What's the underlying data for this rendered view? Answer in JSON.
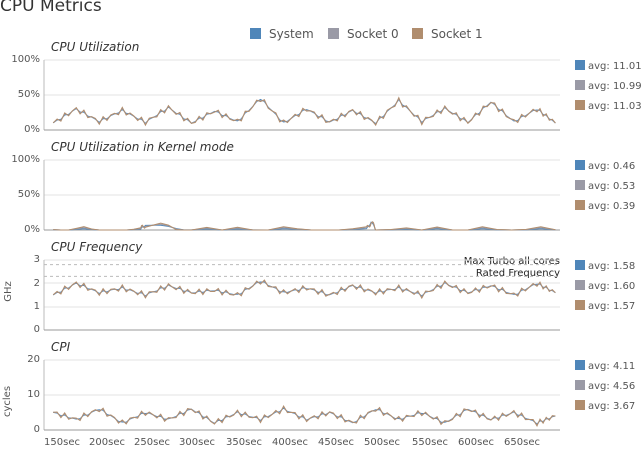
{
  "title": "CPU Metrics",
  "legend": [
    {
      "label": "System",
      "color": "#4f86b9"
    },
    {
      "label": "Socket 0",
      "color": "#9a9aa6"
    },
    {
      "label": "Socket 1",
      "color": "#b08d6e"
    }
  ],
  "x_ticks": [
    "150sec",
    "200sec",
    "250sec",
    "300sec",
    "350sec",
    "400sec",
    "450sec",
    "500sec",
    "550sec",
    "600sec",
    "650sec"
  ],
  "panels": [
    {
      "title": "CPU Utilization",
      "ylabel": "",
      "y_ticks": [
        "100%",
        "50%",
        "0%"
      ],
      "avgs": [
        "avg: 11.01",
        "avg: 10.99",
        "avg: 11.03"
      ]
    },
    {
      "title": "CPU Utilization in Kernel mode",
      "ylabel": "",
      "y_ticks": [
        "100%",
        "50%",
        "0%"
      ],
      "avgs": [
        "avg: 0.46",
        "avg: 0.53",
        "avg: 0.39"
      ]
    },
    {
      "title": "CPU Frequency",
      "ylabel": "GHz",
      "y_ticks": [
        "3",
        "2",
        "1",
        "0"
      ],
      "avgs": [
        "avg: 1.58",
        "avg: 1.60",
        "avg: 1.57"
      ],
      "ref_lines": [
        "Max Turbo all cores",
        "Rated Frequency"
      ]
    },
    {
      "title": "CPI",
      "ylabel": "cycles",
      "y_ticks": [
        "20",
        "10",
        "0"
      ],
      "avgs": [
        "avg: 4.11",
        "avg: 4.56",
        "avg: 3.67"
      ]
    }
  ],
  "chart_data": [
    {
      "type": "line",
      "title": "CPU Utilization",
      "xlabel": "",
      "ylabel": "",
      "xlim": [
        140,
        700
      ],
      "ylim": [
        0,
        100
      ],
      "series": [
        {
          "name": "System",
          "avg": 11.01
        },
        {
          "name": "Socket 0",
          "avg": 10.99
        },
        {
          "name": "Socket 1",
          "avg": 11.03
        }
      ],
      "x": [
        150,
        175,
        200,
        225,
        250,
        275,
        300,
        325,
        350,
        375,
        400,
        425,
        450,
        475,
        500,
        525,
        550,
        575,
        600,
        625,
        650,
        675,
        695
      ],
      "values": [
        10,
        30,
        12,
        28,
        11,
        32,
        10,
        27,
        12,
        45,
        10,
        30,
        11,
        28,
        10,
        42,
        12,
        31,
        11,
        40,
        12,
        30,
        10
      ]
    },
    {
      "type": "line",
      "title": "CPU Utilization in Kernel mode",
      "xlabel": "",
      "ylabel": "",
      "xlim": [
        140,
        700
      ],
      "ylim": [
        0,
        100
      ],
      "series": [
        {
          "name": "System",
          "avg": 0.46
        },
        {
          "name": "Socket 0",
          "avg": 0.53
        },
        {
          "name": "Socket 1",
          "avg": 0.39
        }
      ],
      "x": [
        150,
        200,
        245,
        250,
        300,
        400,
        490,
        495,
        500,
        600,
        695
      ],
      "values": [
        0.3,
        0.3,
        0.5,
        8,
        0.4,
        0.4,
        0.5,
        12,
        0.4,
        0.3,
        0.3
      ]
    },
    {
      "type": "line",
      "title": "CPU Frequency",
      "xlabel": "",
      "ylabel": "GHz",
      "xlim": [
        140,
        700
      ],
      "ylim": [
        0,
        3
      ],
      "series": [
        {
          "name": "System",
          "avg": 1.58
        },
        {
          "name": "Socket 0",
          "avg": 1.6
        },
        {
          "name": "Socket 1",
          "avg": 1.57
        }
      ],
      "x": [
        150,
        175,
        200,
        225,
        250,
        275,
        300,
        325,
        350,
        375,
        400,
        425,
        450,
        475,
        500,
        525,
        550,
        575,
        600,
        625,
        650,
        675,
        695
      ],
      "values": [
        1.5,
        2.0,
        1.6,
        1.8,
        1.5,
        1.9,
        1.6,
        1.7,
        1.5,
        2.1,
        1.6,
        1.8,
        1.5,
        1.9,
        1.6,
        1.8,
        1.5,
        2.0,
        1.6,
        1.9,
        1.5,
        2.0,
        1.6
      ],
      "ref_lines": {
        "Max Turbo all cores": 2.8,
        "Rated Frequency": 2.3
      }
    },
    {
      "type": "line",
      "title": "CPI",
      "xlabel": "",
      "ylabel": "cycles",
      "xlim": [
        140,
        700
      ],
      "ylim": [
        0,
        20
      ],
      "series": [
        {
          "name": "System",
          "avg": 4.11
        },
        {
          "name": "Socket 0",
          "avg": 4.56
        },
        {
          "name": "Socket 1",
          "avg": 3.67
        }
      ],
      "x": [
        150,
        175,
        200,
        225,
        250,
        275,
        300,
        325,
        350,
        375,
        400,
        425,
        450,
        475,
        500,
        525,
        550,
        575,
        600,
        625,
        650,
        675,
        695
      ],
      "values": [
        5,
        3,
        6,
        2,
        5,
        3,
        6,
        2,
        5,
        3,
        6,
        3,
        5,
        2,
        6,
        3,
        5,
        2,
        6,
        3,
        5,
        2,
        4
      ]
    }
  ]
}
